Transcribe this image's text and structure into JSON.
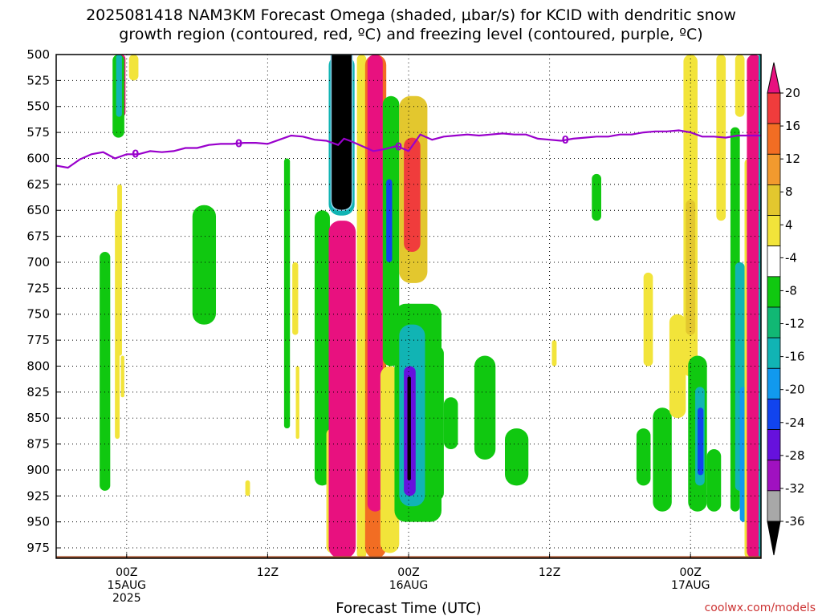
{
  "title_line1": "2025081418 NAM3KM Forecast Omega (shaded, μbar/s) for KCID with dendritic snow",
  "title_line2": "growth region (contoured, red, ºC) and freezing level (contoured, purple, ºC)",
  "credit": "coolwx.com/models",
  "colors": {
    "terrain": "#a0522d",
    "freezing_line": "#9900cc",
    "grid": "#000000"
  },
  "chart_data": {
    "type": "heatmap",
    "title": "2025081418 NAM3KM Forecast Omega (shaded, μbar/s) for KCID with dendritic snow growth region (contoured, red, ºC) and freezing level (contoured, purple, ºC)",
    "xlabel": "Forecast Time (UTC)",
    "ylabel": "",
    "x_range_hours": [
      -6,
      54
    ],
    "y_range_hPa": [
      500,
      985
    ],
    "y_scale": "linear-inverted",
    "y_ticks": [
      500,
      525,
      550,
      575,
      600,
      625,
      650,
      675,
      700,
      725,
      750,
      775,
      800,
      825,
      850,
      875,
      900,
      925,
      950,
      975
    ],
    "x_ticks": [
      {
        "h": 0,
        "line1": "00Z",
        "line2": "15AUG",
        "line3": "2025"
      },
      {
        "h": 12,
        "line1": "12Z",
        "line2": "",
        "line3": ""
      },
      {
        "h": 24,
        "line1": "00Z",
        "line2": "16AUG",
        "line3": ""
      },
      {
        "h": 36,
        "line1": "12Z",
        "line2": "",
        "line3": ""
      },
      {
        "h": 48,
        "line1": "00Z",
        "line2": "17AUG",
        "line3": ""
      }
    ],
    "grid": "dotted",
    "colorbar": {
      "levels": [
        "20",
        "16",
        "12",
        "8",
        "4",
        "-4",
        "-8",
        "-12",
        "-16",
        "-20",
        "-24",
        "-28",
        "-32",
        "-36"
      ],
      "bins": [
        {
          "color": "#e8117f"
        },
        {
          "color": "#f03c3c"
        },
        {
          "color": "#f26d23"
        },
        {
          "color": "#f29a2e"
        },
        {
          "color": "#e3c72e"
        },
        {
          "color": "#f2e43a"
        },
        {
          "color": "#ffffff"
        },
        {
          "color": "#10c810"
        },
        {
          "color": "#11b874"
        },
        {
          "color": "#11b4b4"
        },
        {
          "color": "#1199ee"
        },
        {
          "color": "#1144ee"
        },
        {
          "color": "#6611dd"
        },
        {
          "color": "#a011c0"
        },
        {
          "color": "#a8a8a8"
        },
        {
          "color": "#000000"
        }
      ]
    },
    "freezing_level": {
      "label": "0",
      "label_at_h": [
        0.2,
        9,
        22.6,
        36.8
      ],
      "points": [
        [
          -6,
          607
        ],
        [
          -5,
          609
        ],
        [
          -4,
          601
        ],
        [
          -3,
          596
        ],
        [
          -2,
          594
        ],
        [
          -1,
          600
        ],
        [
          0,
          596
        ],
        [
          1,
          596
        ],
        [
          2,
          593
        ],
        [
          3,
          594
        ],
        [
          4,
          593
        ],
        [
          5,
          590
        ],
        [
          6,
          590
        ],
        [
          7,
          587
        ],
        [
          8,
          586
        ],
        [
          9,
          586
        ],
        [
          10,
          585
        ],
        [
          11,
          585
        ],
        [
          12,
          586
        ],
        [
          13,
          582
        ],
        [
          14,
          578
        ],
        [
          15,
          579
        ],
        [
          16,
          582
        ],
        [
          17,
          583
        ],
        [
          18,
          587
        ],
        [
          18.5,
          581
        ],
        [
          19,
          583
        ],
        [
          20,
          588
        ],
        [
          21,
          593
        ],
        [
          22,
          591
        ],
        [
          23,
          588
        ],
        [
          24,
          593
        ],
        [
          25,
          577
        ],
        [
          26,
          582
        ],
        [
          27,
          579
        ],
        [
          28,
          578
        ],
        [
          29,
          577
        ],
        [
          30,
          578
        ],
        [
          31,
          577
        ],
        [
          32,
          576
        ],
        [
          33,
          577
        ],
        [
          34,
          577
        ],
        [
          35,
          581
        ],
        [
          36,
          582
        ],
        [
          37,
          583
        ],
        [
          38,
          581
        ],
        [
          39,
          580
        ],
        [
          40,
          579
        ],
        [
          41,
          579
        ],
        [
          42,
          577
        ],
        [
          43,
          577
        ],
        [
          44,
          575
        ],
        [
          45,
          574
        ],
        [
          46,
          574
        ],
        [
          47,
          573
        ],
        [
          48,
          575
        ],
        [
          49,
          579
        ],
        [
          50,
          579
        ],
        [
          51,
          580
        ],
        [
          52,
          578
        ],
        [
          53,
          578
        ],
        [
          54,
          578
        ]
      ]
    },
    "regions": [
      {
        "v": 20,
        "h": [
          -0.8,
          -0.1
        ],
        "p": [
          500,
          560
        ],
        "shape": "cap"
      },
      {
        "v": -4,
        "h": [
          -1.2,
          -0.2
        ],
        "p": [
          500,
          580
        ]
      },
      {
        "v": -12,
        "h": [
          -0.9,
          -0.4
        ],
        "p": [
          500,
          560
        ]
      },
      {
        "v": 4,
        "h": [
          0.2,
          1.0
        ],
        "p": [
          500,
          525
        ]
      },
      {
        "v": 4,
        "h": [
          -1.0,
          -0.6
        ],
        "p": [
          650,
          870
        ]
      },
      {
        "v": -4,
        "h": [
          -2.3,
          -1.4
        ],
        "p": [
          690,
          920
        ]
      },
      {
        "v": 4,
        "h": [
          -0.8,
          -0.4
        ],
        "p": [
          625,
          790
        ]
      },
      {
        "v": 4,
        "h": [
          -0.5,
          -0.2
        ],
        "p": [
          790,
          830
        ]
      },
      {
        "v": -4,
        "h": [
          5.6,
          7.6
        ],
        "p": [
          645,
          760
        ]
      },
      {
        "v": -4,
        "h": [
          13.4,
          13.9
        ],
        "p": [
          600,
          860
        ]
      },
      {
        "v": 4,
        "h": [
          14.1,
          14.6
        ],
        "p": [
          700,
          770
        ]
      },
      {
        "v": 4,
        "h": [
          14.4,
          14.7
        ],
        "p": [
          800,
          870
        ]
      },
      {
        "v": 4,
        "h": [
          10.1,
          10.5
        ],
        "p": [
          910,
          925
        ]
      },
      {
        "v": -4,
        "h": [
          16.0,
          17.3
        ],
        "p": [
          650,
          915
        ]
      },
      {
        "v": 4,
        "h": [
          17.0,
          18.0
        ],
        "p": [
          860,
          980
        ]
      },
      {
        "v": -12,
        "h": [
          17.2,
          19.4
        ],
        "p": [
          500,
          655
        ]
      },
      {
        "v": -36,
        "h": [
          17.4,
          19.2
        ],
        "p": [
          500,
          650
        ],
        "shape": "drop"
      },
      {
        "v": 20,
        "h": [
          17.2,
          19.5
        ],
        "p": [
          660,
          985
        ],
        "shape": "round"
      },
      {
        "v": 4,
        "h": [
          19.6,
          20.4
        ],
        "p": [
          500,
          985
        ]
      },
      {
        "v": 12,
        "h": [
          20.3,
          22.1
        ],
        "p": [
          500,
          985
        ]
      },
      {
        "v": 20,
        "h": [
          20.5,
          21.8
        ],
        "p": [
          500,
          940
        ]
      },
      {
        "v": -4,
        "h": [
          21.8,
          23.2
        ],
        "p": [
          540,
          800
        ]
      },
      {
        "v": -20,
        "h": [
          22.1,
          22.6
        ],
        "p": [
          620,
          700
        ]
      },
      {
        "v": 4,
        "h": [
          21.6,
          23.2
        ],
        "p": [
          800,
          980
        ]
      },
      {
        "v": 8,
        "h": [
          23.2,
          25.6
        ],
        "p": [
          540,
          720
        ]
      },
      {
        "v": 16,
        "h": [
          23.6,
          25.0
        ],
        "p": [
          580,
          690
        ]
      },
      {
        "v": -4,
        "h": [
          22.8,
          26.8
        ],
        "p": [
          740,
          950
        ]
      },
      {
        "v": -12,
        "h": [
          23.2,
          25.4
        ],
        "p": [
          760,
          935
        ]
      },
      {
        "v": -24,
        "h": [
          23.6,
          24.6
        ],
        "p": [
          800,
          925
        ]
      },
      {
        "v": -36,
        "h": [
          23.9,
          24.2
        ],
        "p": [
          810,
          910
        ]
      },
      {
        "v": -4,
        "h": [
          25.6,
          27.0
        ],
        "p": [
          780,
          930
        ]
      },
      {
        "v": -4,
        "h": [
          27.0,
          28.2
        ],
        "p": [
          830,
          880
        ]
      },
      {
        "v": -4,
        "h": [
          29.6,
          31.4
        ],
        "p": [
          790,
          890
        ]
      },
      {
        "v": -4,
        "h": [
          32.2,
          34.2
        ],
        "p": [
          860,
          915
        ]
      },
      {
        "v": 4,
        "h": [
          36.2,
          36.6
        ],
        "p": [
          775,
          800
        ]
      },
      {
        "v": -4,
        "h": [
          39.6,
          40.4
        ],
        "p": [
          615,
          660
        ]
      },
      {
        "v": -4,
        "h": [
          43.4,
          44.6
        ],
        "p": [
          860,
          915
        ]
      },
      {
        "v": -4,
        "h": [
          44.8,
          46.4
        ],
        "p": [
          840,
          940
        ]
      },
      {
        "v": 4,
        "h": [
          46.2,
          47.6
        ],
        "p": [
          750,
          850
        ]
      },
      {
        "v": 4,
        "h": [
          44.0,
          44.8
        ],
        "p": [
          710,
          800
        ]
      },
      {
        "v": 4,
        "h": [
          47.4,
          48.6
        ],
        "p": [
          500,
          810
        ]
      },
      {
        "v": 8,
        "h": [
          47.6,
          48.4
        ],
        "p": [
          640,
          770
        ]
      },
      {
        "v": -4,
        "h": [
          47.8,
          49.4
        ],
        "p": [
          790,
          940
        ]
      },
      {
        "v": -12,
        "h": [
          48.4,
          49.2
        ],
        "p": [
          820,
          915
        ]
      },
      {
        "v": -20,
        "h": [
          48.6,
          49.1
        ],
        "p": [
          840,
          905
        ]
      },
      {
        "v": -4,
        "h": [
          49.4,
          50.6
        ],
        "p": [
          880,
          940
        ]
      },
      {
        "v": 4,
        "h": [
          50.2,
          51.0
        ],
        "p": [
          500,
          660
        ]
      },
      {
        "v": -4,
        "h": [
          51.4,
          52.2
        ],
        "p": [
          570,
          940
        ]
      },
      {
        "v": 4,
        "h": [
          51.8,
          52.6
        ],
        "p": [
          500,
          560
        ]
      },
      {
        "v": -12,
        "h": [
          51.8,
          52.6
        ],
        "p": [
          700,
          920
        ]
      },
      {
        "v": -16,
        "h": [
          52.2,
          52.8
        ],
        "p": [
          820,
          950
        ]
      },
      {
        "v": 4,
        "h": [
          52.6,
          53.4
        ],
        "p": [
          600,
          985
        ]
      },
      {
        "v": 20,
        "h": [
          52.8,
          54.0
        ],
        "p": [
          500,
          985
        ]
      },
      {
        "v": -12,
        "h": [
          53.8,
          54.0
        ],
        "p": [
          500,
          985
        ]
      }
    ],
    "terrain_top_hPa": 983
  }
}
